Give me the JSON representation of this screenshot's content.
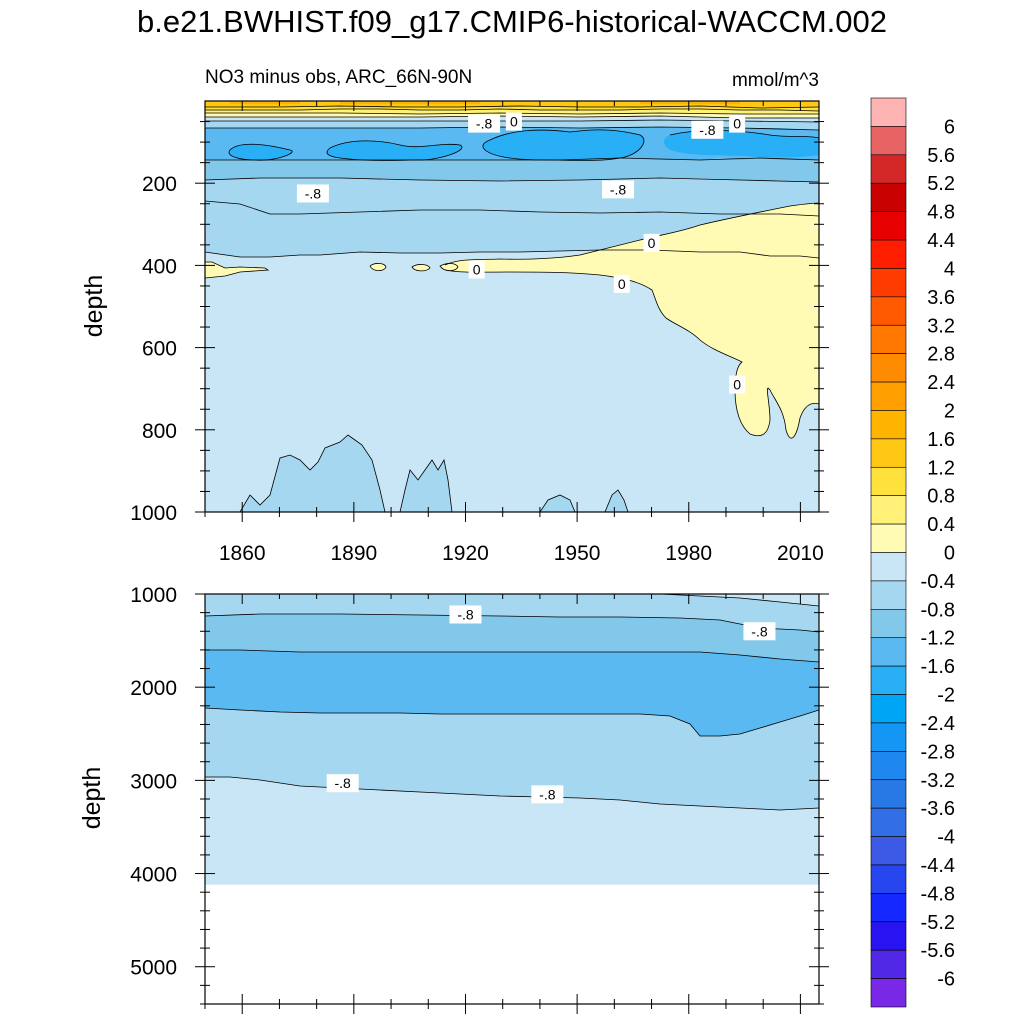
{
  "title": "b.e21.BWHIST.f09_g17.CMIP6-historical-WACCM.002",
  "chart_data": {
    "type": "heatmap",
    "title": "b.e21.BWHIST.f09_g17.CMIP6-historical-WACCM.002",
    "subtitle_left": "NO3 minus obs, ARC_66N-90N",
    "subtitle_right": "mmol/m^3",
    "xlabel": "",
    "ylabel": "depth",
    "xlim": [
      1850,
      2015
    ],
    "x_ticks": [
      1860,
      1890,
      1920,
      1950,
      1980,
      2010
    ],
    "top_panel": {
      "ylim": [
        0,
        1000
      ],
      "y_ticks": [
        200,
        400,
        600,
        800,
        1000
      ],
      "contour_labels": [
        {
          "text": "-.8",
          "x": 1925,
          "depth": 55
        },
        {
          "text": "0",
          "x": 1933,
          "depth": 50
        },
        {
          "text": "-.8",
          "x": 1985,
          "depth": 70
        },
        {
          "text": "0",
          "x": 1993,
          "depth": 55
        },
        {
          "text": "-.8",
          "x": 1879,
          "depth": 225
        },
        {
          "text": "-.8",
          "x": 1961,
          "depth": 215
        },
        {
          "text": "0",
          "x": 1970,
          "depth": 345
        },
        {
          "text": "0",
          "x": 1923,
          "depth": 410
        },
        {
          "text": "0",
          "x": 1962,
          "depth": 445
        },
        {
          "text": "0",
          "x": 1993,
          "depth": 690
        }
      ]
    },
    "bottom_panel": {
      "ylim": [
        1000,
        5400
      ],
      "y_ticks": [
        1000,
        2000,
        3000,
        4000,
        5000
      ],
      "contour_labels": [
        {
          "text": "-.8",
          "x": 1920,
          "depth": 1220
        },
        {
          "text": "-.8",
          "x": 1999,
          "depth": 1400
        },
        {
          "text": "-.8",
          "x": 1887,
          "depth": 3030
        },
        {
          "text": "-.8",
          "x": 1942,
          "depth": 3150
        }
      ],
      "data_bottom_depth": 4120
    },
    "colorbar": {
      "levels": [
        "6",
        "5.6",
        "5.2",
        "4.8",
        "4.4",
        "4",
        "3.6",
        "3.2",
        "2.8",
        "2.4",
        "2",
        "1.6",
        "1.2",
        "0.8",
        "0.4",
        "0",
        "-0.4",
        "-0.8",
        "-1.2",
        "-1.6",
        "-2",
        "-2.4",
        "-2.8",
        "-3.2",
        "-3.6",
        "-4",
        "-4.4",
        "-4.8",
        "-5.2",
        "-5.6",
        "-6"
      ],
      "colors": [
        "#ffb4b4",
        "#e86464",
        "#d42828",
        "#c80000",
        "#e60000",
        "#ff1e00",
        "#ff3c00",
        "#ff5a00",
        "#ff7800",
        "#ff8c00",
        "#ffa000",
        "#ffb400",
        "#ffc814",
        "#ffe13c",
        "#fff078",
        "#fffab4",
        "#c8e6f5",
        "#a5d7f0",
        "#82c8eb",
        "#5ab9f0",
        "#28aff5",
        "#00a5f5",
        "#1496f5",
        "#1e87f0",
        "#2878e6",
        "#326ee6",
        "#3c5ae6",
        "#2846f0",
        "#1428ff",
        "#2814f0",
        "#5028e6",
        "#7828e6"
      ]
    },
    "colors": {
      "c_m04": "#c8e6f5",
      "c_m08": "#a5d7f0",
      "c_m12": "#82c8eb",
      "c_m16": "#5ab9f0",
      "c_m20": "#28aff5",
      "c_p00": "#fffab4",
      "c_p04": "#fff078",
      "c_p08": "#ffe13c",
      "c_p12": "#ffc814",
      "c_p16": "#ffb400"
    }
  }
}
